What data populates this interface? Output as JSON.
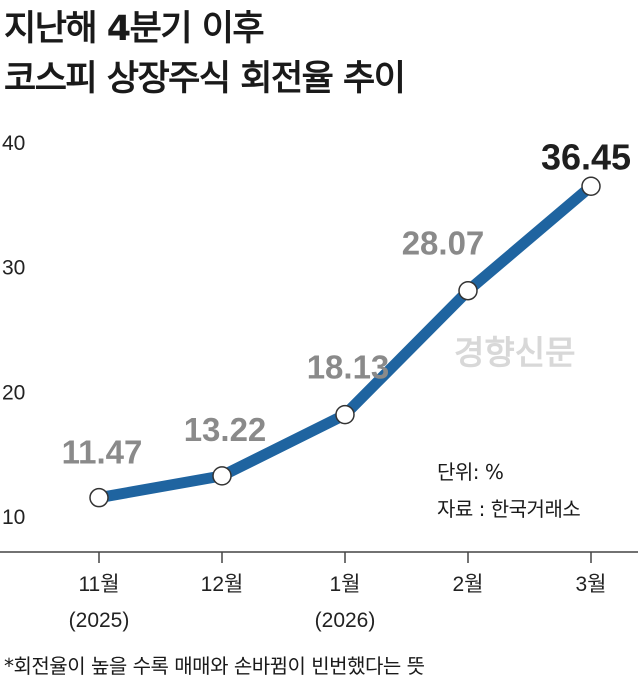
{
  "title_line1": "지난해 4분기 이후",
  "title_line2": "코스피 상장주식 회전율 추이",
  "unit_note": "단위: %",
  "source_note": "자료 : 한국거래소",
  "watermark": "경향신문",
  "footnote": "*회전율이 높을 수록 매매와 손바뀜이 빈번했다는 뜻",
  "colors": {
    "line": "#1f64a0",
    "marker_fill": "#ffffff",
    "label_gray": "#8a8a8a",
    "label_dark": "#1f1f1f"
  },
  "chart_data": {
    "type": "line",
    "categories": [
      "11월\n(2025)",
      "12월",
      "1월\n(2026)",
      "2월",
      "3월"
    ],
    "values": [
      11.47,
      13.22,
      18.13,
      28.07,
      36.45
    ],
    "data_labels": [
      "11.47",
      "13.22",
      "18.13",
      "28.07",
      "36.45"
    ],
    "y_ticks": [
      "10",
      "20",
      "30",
      "40"
    ],
    "ylim": [
      10,
      40
    ],
    "grid": false,
    "title": "지난해 4분기 이후 코스피 상장주식 회전율 추이"
  }
}
